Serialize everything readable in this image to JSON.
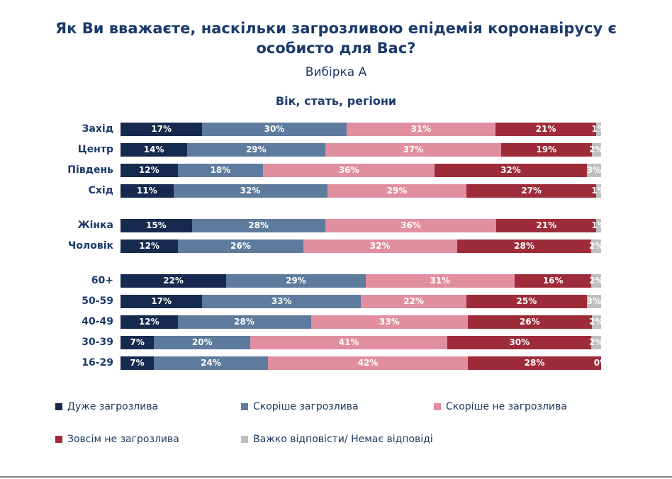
{
  "header": {
    "title": "Як Ви вважаєте, наскільки загрозливою епідемія коронавірусу є особисто для Вас?",
    "subtitle": "Вибірка А",
    "section_title": "Вік, стать, регіони"
  },
  "chart_data": {
    "type": "bar",
    "orientation": "horizontal",
    "stacked": true,
    "value_suffix": "%",
    "xlim": [
      0,
      100
    ],
    "legend_position": "bottom",
    "value_labels": "inside-white",
    "groups": [
      {
        "name": "regions",
        "categories": [
          "Захід",
          "Центр",
          "Південь",
          "Схід"
        ]
      },
      {
        "name": "gender",
        "categories": [
          "Жінка",
          "Чоловік"
        ]
      },
      {
        "name": "age",
        "categories": [
          "60+",
          "50-59",
          "40-49",
          "30-39",
          "16-29"
        ]
      }
    ],
    "categories": [
      "Захід",
      "Центр",
      "Південь",
      "Схід",
      "Жінка",
      "Чоловік",
      "60+",
      "50-59",
      "40-49",
      "30-39",
      "16-29"
    ],
    "series": [
      {
        "name": "Дуже загрозлива",
        "color": "#16294e",
        "values": [
          17,
          14,
          12,
          11,
          15,
          12,
          22,
          17,
          12,
          7,
          7
        ]
      },
      {
        "name": "Скоріше загрозлива",
        "color": "#5e7b9d",
        "values": [
          30,
          29,
          18,
          32,
          28,
          26,
          29,
          33,
          28,
          20,
          24
        ]
      },
      {
        "name": "Скоріше не загрозлива",
        "color": "#e18fa0",
        "values": [
          31,
          37,
          36,
          29,
          36,
          32,
          31,
          22,
          33,
          41,
          42
        ]
      },
      {
        "name": "Зовсім не загрозлива",
        "color": "#9e2b3a",
        "values": [
          21,
          19,
          32,
          27,
          21,
          28,
          16,
          25,
          26,
          30,
          28
        ]
      },
      {
        "name": "Важко відповісти/ Немає відповіді",
        "color": "#bfbfbf",
        "values": [
          1,
          2,
          3,
          1,
          1,
          2,
          2,
          3,
          2,
          2,
          0
        ]
      }
    ]
  }
}
